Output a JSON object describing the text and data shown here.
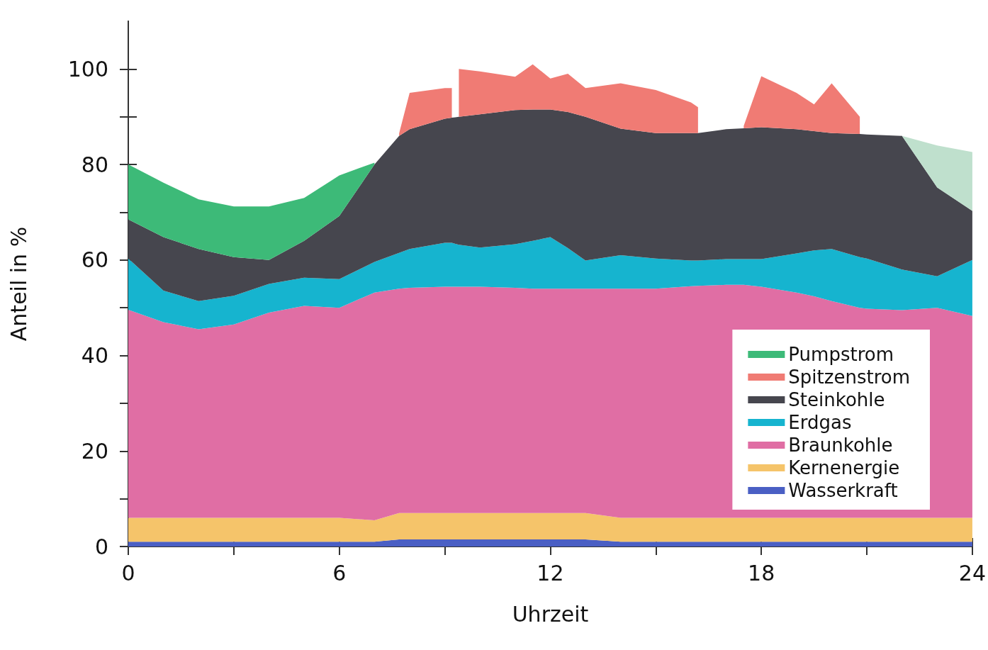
{
  "chart_data": {
    "type": "area",
    "xlabel": "Uhrzeit",
    "ylabel": "Anteil in %",
    "stacked": true,
    "legend": "bottom right",
    "grid": false,
    "x": [
      0,
      1,
      2,
      3,
      4,
      5,
      6,
      7,
      7.7,
      8,
      9,
      9.2,
      9.3,
      9.4,
      10,
      11,
      11.5,
      12,
      12.5,
      13,
      14,
      15,
      16,
      16.2,
      17,
      17.5,
      18,
      19,
      19.5,
      20,
      20.8,
      21,
      22,
      23,
      24
    ],
    "xlim": [
      0,
      24
    ],
    "xticks": [
      0,
      {
        "value": 3,
        "label": null
      },
      6,
      {
        "value": 9,
        "label": null
      },
      12,
      {
        "value": 15,
        "label": null
      },
      18,
      {
        "value": 21,
        "label": null
      },
      24
    ],
    "ylim": [
      0,
      110
    ],
    "yticks": [
      0,
      {
        "value": 10,
        "label": null
      },
      20,
      {
        "value": 30,
        "label": null
      },
      40,
      {
        "value": 50,
        "label": null
      },
      60,
      {
        "value": 70,
        "label": null
      },
      80,
      {
        "value": 90,
        "label": null
      },
      100
    ],
    "series": [
      {
        "name": "Wasserkraft",
        "color": "#4a5fc4",
        "values": [
          1,
          1,
          1,
          1,
          1,
          1,
          1,
          1,
          1.5,
          1.5,
          1.5,
          1.5,
          1.5,
          1.5,
          1.5,
          1.5,
          1.5,
          1.5,
          1.5,
          1.5,
          1,
          1,
          1,
          1,
          1,
          1,
          1,
          1,
          1,
          1,
          1,
          1,
          1,
          1,
          1
        ]
      },
      {
        "name": "Kernenergie",
        "color": "#f5c46a",
        "values": [
          5,
          5,
          5,
          5,
          5,
          5,
          5,
          4.5,
          5.5,
          5.5,
          5.5,
          5.5,
          5.5,
          5.5,
          5.5,
          5.5,
          5.5,
          5.5,
          5.5,
          5.5,
          5,
          5,
          5,
          5,
          5,
          5,
          5,
          5,
          5,
          5,
          5,
          5,
          5,
          5,
          5
        ]
      },
      {
        "name": "Braunkohle",
        "color": "#e06ea4",
        "values": [
          43.6,
          41,
          39.5,
          40.5,
          43,
          44.4,
          44,
          47.7,
          47,
          47.2,
          47.4,
          47.4,
          47.4,
          47.4,
          47.4,
          47.2,
          47,
          47,
          47,
          47,
          48,
          48,
          48.5,
          48.6,
          48.8,
          48.8,
          48.4,
          47.2,
          46.4,
          45.4,
          44,
          43.8,
          43.5,
          44,
          42.3
        ]
      },
      {
        "name": "Erdgas",
        "color": "#16b4cf",
        "values": [
          10.7,
          6.6,
          5.9,
          6,
          6,
          5.9,
          6,
          6.4,
          7.5,
          8.1,
          9.2,
          9.2,
          9,
          8.8,
          8.2,
          9.1,
          10,
          10.8,
          8.5,
          5.9,
          7,
          6.3,
          5.4,
          5.3,
          5.4,
          5.4,
          5.8,
          8.2,
          9.6,
          10.9,
          10.6,
          10.5,
          8.5,
          6.6,
          11.7
        ]
      },
      {
        "name": "Steinkohle",
        "color": "#46464e",
        "values": [
          8.2,
          11.2,
          10.9,
          8.1,
          5,
          7.7,
          13.2,
          20.4,
          24.5,
          25.1,
          26,
          26.2,
          26.5,
          26.8,
          27.9,
          28.1,
          27.5,
          26.7,
          28.5,
          30.1,
          26.5,
          26.3,
          26.7,
          26.7,
          27.2,
          27.4,
          27.6,
          26,
          25,
          24.3,
          25.8,
          26,
          28,
          18.6,
          10.3
        ]
      },
      {
        "name": "Spitzenstrom",
        "color": "#f07b74",
        "values": [
          null,
          null,
          null,
          null,
          null,
          null,
          null,
          null,
          0.5,
          7.6,
          6.4,
          6.2,
          null,
          10,
          9,
          7,
          9.5,
          6.5,
          8,
          6,
          9.5,
          9,
          6.4,
          5.4,
          null,
          0.5,
          10.7,
          7.6,
          5.6,
          10.4,
          3.6,
          null,
          null,
          null,
          null
        ]
      },
      {
        "name": "Pumpstrom",
        "color": "#3dba78",
        "values": [
          11.5,
          11.4,
          10.4,
          10.6,
          11.2,
          9,
          8.5,
          0.4,
          null,
          null,
          null,
          null,
          null,
          null,
          null,
          null,
          null,
          null,
          null,
          null,
          null,
          null,
          null,
          null,
          null,
          null,
          null,
          null,
          null,
          null,
          null,
          null,
          null,
          null,
          null
        ]
      },
      {
        "color": "#bfe0cd",
        "values": [
          null,
          null,
          null,
          null,
          null,
          null,
          null,
          null,
          null,
          null,
          null,
          null,
          null,
          null,
          null,
          null,
          null,
          null,
          null,
          null,
          null,
          null,
          null,
          null,
          null,
          null,
          null,
          null,
          null,
          null,
          null,
          null,
          0,
          8.8,
          12.3
        ]
      }
    ]
  }
}
